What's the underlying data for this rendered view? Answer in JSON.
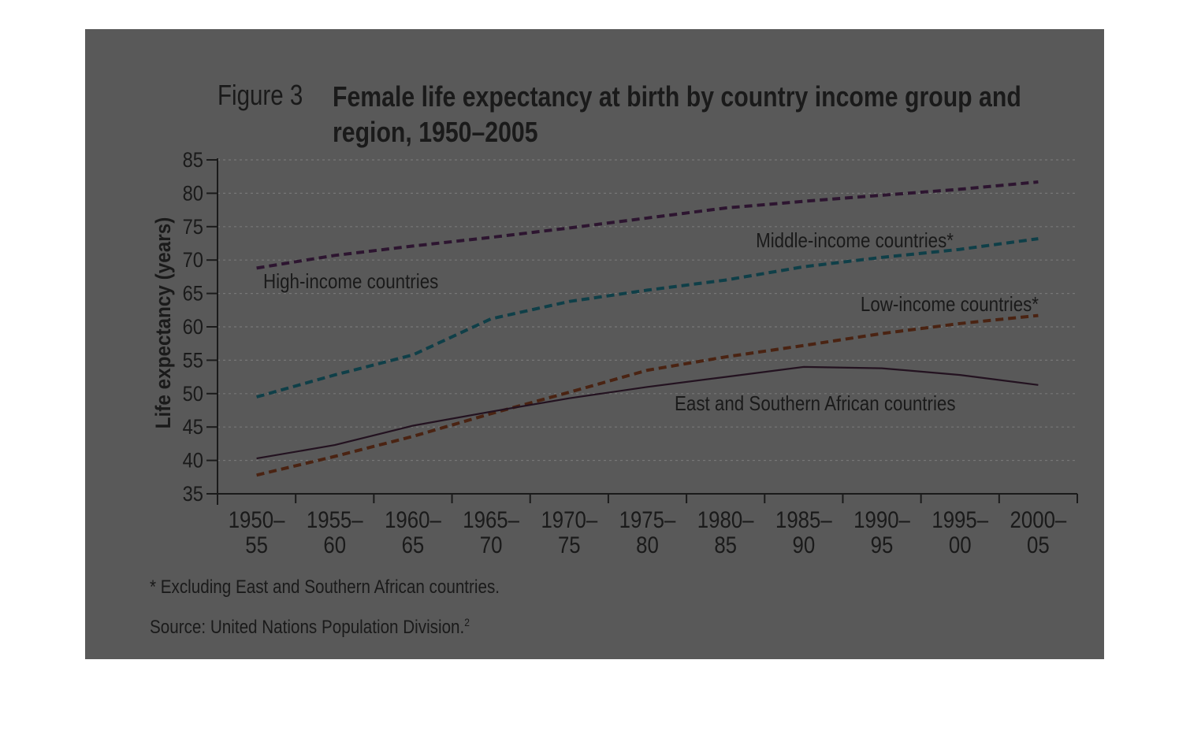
{
  "figure": {
    "label": "Figure 3",
    "title": "Female life expectancy at birth by country income group and region, 1950–2005"
  },
  "footnote": "* Excluding East and Southern African countries.",
  "source": {
    "text": "Source: United Nations Population Division.",
    "superscript": "2"
  },
  "colors": {
    "panel": "#595959",
    "grid": "#777777",
    "axis": "#1a1a1a",
    "text": "#1a1a1a"
  },
  "chart_data": {
    "type": "line",
    "title": "Female life expectancy at birth by country income group and region, 1950–2005",
    "ylabel": "Life expectancy (years)",
    "xlabel": "",
    "ylim": [
      35,
      85
    ],
    "yticks": [
      35,
      40,
      45,
      50,
      55,
      60,
      65,
      70,
      75,
      80,
      85
    ],
    "grid": true,
    "categories": [
      [
        "1950–",
        "55"
      ],
      [
        "1955–",
        "60"
      ],
      [
        "1960–",
        "65"
      ],
      [
        "1965–",
        "70"
      ],
      [
        "1970–",
        "75"
      ],
      [
        "1975–",
        "80"
      ],
      [
        "1980–",
        "85"
      ],
      [
        "1985–",
        "90"
      ],
      [
        "1990–",
        "95"
      ],
      [
        "1995–",
        "00"
      ],
      [
        "2000–",
        "05"
      ]
    ],
    "series": [
      {
        "name": "High-income countries",
        "style": "dashed",
        "color": "#2d1530",
        "values": [
          68.8,
          70.7,
          72.1,
          73.4,
          74.8,
          76.3,
          77.8,
          78.8,
          79.7,
          80.6,
          81.7
        ]
      },
      {
        "name": "Middle-income countries*",
        "style": "dashed",
        "color": "#0f3f48",
        "values": [
          49.5,
          52.8,
          55.8,
          61.2,
          63.8,
          65.5,
          67.0,
          69.0,
          70.4,
          71.6,
          73.2
        ]
      },
      {
        "name": "Low-income countries*",
        "style": "dashed",
        "color": "#4a2312",
        "values": [
          37.8,
          40.6,
          43.6,
          47.0,
          50.2,
          53.5,
          55.5,
          57.2,
          59.0,
          60.5,
          61.7
        ]
      },
      {
        "name": "East and Southern African countries",
        "style": "solid",
        "color": "#231220",
        "values": [
          40.3,
          42.3,
          45.2,
          47.3,
          49.3,
          51.0,
          52.5,
          54.0,
          53.8,
          52.8,
          51.3
        ]
      }
    ]
  }
}
